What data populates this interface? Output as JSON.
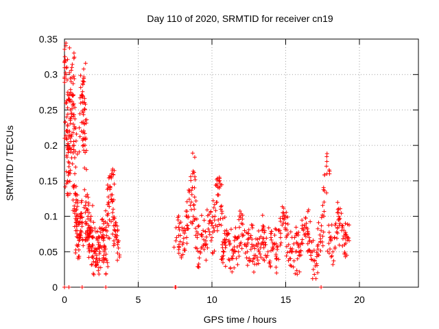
{
  "chart_data": {
    "type": "scatter",
    "title": "Day 110 of 2020, SRMTID for receiver cn19",
    "xlabel": "GPS time / hours",
    "ylabel": "SRMTID / TECUs",
    "xlim": [
      0,
      24
    ],
    "ylim": [
      0,
      0.35
    ],
    "xticks": [
      "0",
      "5",
      "10",
      "15",
      "20"
    ],
    "yticks": [
      "0",
      "0.05",
      "0.1",
      "0.15",
      "0.2",
      "0.25",
      "0.3",
      "0.35"
    ],
    "grid": true,
    "marker": "+",
    "color": "#ff0000",
    "series": [
      {
        "name": "SRMTID",
        "x": [
          0.05,
          0.1,
          0.12,
          0.15,
          0.2,
          0.25,
          0.3,
          0.35,
          0.4,
          0.45,
          0.5,
          0.55,
          0.6,
          0.65,
          0.7,
          0.75,
          0.8,
          0.85,
          0.9,
          0.95,
          1.0,
          1.05,
          1.1,
          1.15,
          1.2,
          1.25,
          1.3,
          1.35,
          1.4,
          1.45,
          1.5,
          1.55,
          1.6,
          1.7,
          1.8,
          1.9,
          2.0,
          2.1,
          2.2,
          2.3,
          2.4,
          2.5,
          2.6,
          2.7,
          2.8,
          2.9,
          3.0,
          3.1,
          3.2,
          3.3,
          3.4,
          3.5,
          3.6,
          7.6,
          7.8,
          8.0,
          8.2,
          8.4,
          8.6,
          8.7,
          8.8,
          9.0,
          9.2,
          9.4,
          9.6,
          9.8,
          10.0,
          10.2,
          10.4,
          10.5,
          10.6,
          10.7,
          10.8,
          11.0,
          11.2,
          11.4,
          11.6,
          11.8,
          12.0,
          12.2,
          12.4,
          12.6,
          12.8,
          13.0,
          13.2,
          13.4,
          13.6,
          13.8,
          14.0,
          14.2,
          14.4,
          14.6,
          14.8,
          15.0,
          15.2,
          15.4,
          15.6,
          15.8,
          16.0,
          16.2,
          16.4,
          16.6,
          16.8,
          17.0,
          17.2,
          17.4,
          17.6,
          17.8,
          18.0,
          18.2,
          18.4,
          18.6,
          18.8,
          19.0,
          19.2
        ],
        "y": [
          0.32,
          0.3,
          0.21,
          0.24,
          0.15,
          0.19,
          0.17,
          0.22,
          0.25,
          0.29,
          0.31,
          0.27,
          0.23,
          0.2,
          0.16,
          0.13,
          0.1,
          0.08,
          0.07,
          0.06,
          0.09,
          0.1,
          0.08,
          0.22,
          0.27,
          0.26,
          0.29,
          0.23,
          0.19,
          0.12,
          0.09,
          0.08,
          0.07,
          0.06,
          0.1,
          0.07,
          0.05,
          0.03,
          0.04,
          0.06,
          0.05,
          0.07,
          0.08,
          0.05,
          0.04,
          0.09,
          0.12,
          0.14,
          0.16,
          0.11,
          0.08,
          0.07,
          0.06,
          0.07,
          0.09,
          0.06,
          0.08,
          0.1,
          0.12,
          0.16,
          0.11,
          0.07,
          0.05,
          0.08,
          0.06,
          0.09,
          0.07,
          0.1,
          0.13,
          0.14,
          0.11,
          0.06,
          0.05,
          0.08,
          0.06,
          0.04,
          0.07,
          0.05,
          0.09,
          0.06,
          0.05,
          0.07,
          0.04,
          0.06,
          0.05,
          0.08,
          0.06,
          0.05,
          0.07,
          0.06,
          0.04,
          0.08,
          0.1,
          0.09,
          0.06,
          0.05,
          0.07,
          0.04,
          0.06,
          0.08,
          0.09,
          0.07,
          0.05,
          0.03,
          0.06,
          0.08,
          0.12,
          0.16,
          0.07,
          0.05,
          0.09,
          0.1,
          0.08,
          0.06,
          0.07
        ]
      }
    ],
    "zero_markers_x": [
      0.0,
      0.3,
      1.2,
      2.8,
      7.5,
      7.55,
      17.4
    ]
  }
}
